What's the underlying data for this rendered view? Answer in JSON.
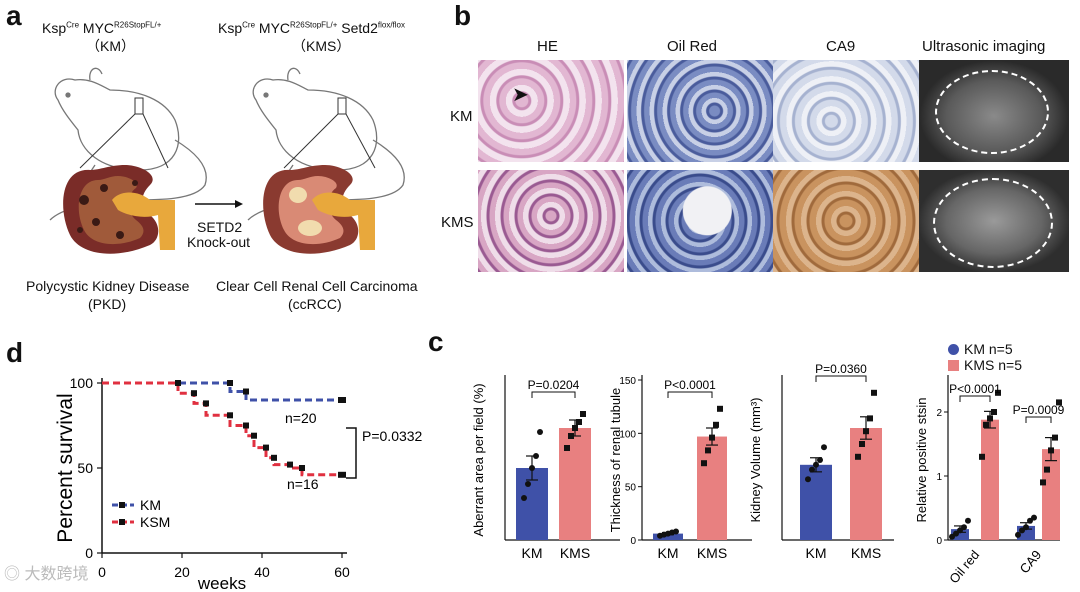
{
  "panel_a": {
    "letter": "a",
    "km_genotype": {
      "base": "Ksp",
      "cre": "Cre",
      "myc": " MYC",
      "r26": "R26StopFL/+"
    },
    "kms_genotype": {
      "base": "Ksp",
      "cre": "Cre",
      "myc": " MYC",
      "r26": "R26StopFL/+",
      "setd2": " Setd2",
      "flox": "flox/flox"
    },
    "km_abbrev": "（KM）",
    "kms_abbrev": "（KMS）",
    "arrow_line1": "SETD2",
    "arrow_line2": "Knock-out",
    "left_disease": "Polycystic Kidney Disease",
    "left_abbrev": "(PKD)",
    "right_disease": "Clear Cell Renal Cell Carcinoma",
    "right_abbrev": "(ccRCC)"
  },
  "panel_b": {
    "letter": "b",
    "columns": [
      "HE",
      "Oil Red",
      "CA9",
      "Ultrasonic imaging"
    ],
    "rows": [
      "KM",
      "KMS"
    ],
    "colors": {
      "he": "#d9a7c9",
      "oil": "#6b7fb8",
      "ca9_km": "#c4cde0",
      "ca9_kms": "#c08a5c",
      "us": "#4a4a4a"
    }
  },
  "panel_d": {
    "letter": "d",
    "ylabel": "Percent survival",
    "xlabel": "weeks",
    "km_n": "n=20",
    "ksm_n": "n=16",
    "pvalue": "P=0.0332",
    "legend": [
      "KM",
      "KSM"
    ]
  },
  "panel_c": {
    "letter": "c",
    "legend": [
      "KM n=5",
      "KMS n=5"
    ],
    "colors": {
      "km": "#3f51a8",
      "kms": "#e88080"
    }
  },
  "chart_data": [
    {
      "type": "line",
      "title": "",
      "xlabel": "weeks",
      "ylabel": "Percent survival",
      "xlim": [
        0,
        60
      ],
      "ylim": [
        0,
        100
      ],
      "xticks": [
        0,
        20,
        40,
        60
      ],
      "yticks": [
        0,
        50,
        100
      ],
      "series": [
        {
          "name": "KM",
          "color": "#3f51a8",
          "x": [
            0,
            32,
            32,
            36,
            36,
            60
          ],
          "y": [
            100,
            100,
            95,
            95,
            90,
            90
          ]
        },
        {
          "name": "KSM",
          "color": "#e03040",
          "x": [
            0,
            19,
            19,
            23,
            23,
            26,
            26,
            32,
            32,
            36,
            36,
            38,
            38,
            41,
            41,
            43,
            43,
            47,
            47,
            50,
            50,
            60
          ],
          "y": [
            100,
            100,
            94,
            94,
            88,
            88,
            81,
            81,
            75,
            75,
            69,
            69,
            62,
            62,
            56,
            56,
            52,
            52,
            50,
            50,
            46,
            46
          ]
        }
      ]
    },
    {
      "type": "bar",
      "ylabel": "Aberrant area per field (%)",
      "categories": [
        "KM",
        "KMS"
      ],
      "values": [
        36,
        56
      ],
      "errors": [
        6,
        4
      ],
      "points": [
        [
          21,
          28,
          36,
          42,
          54
        ],
        [
          46,
          52,
          56,
          59,
          63
        ]
      ],
      "ylim": [
        0,
        80
      ],
      "pvalue": "P=0.0204"
    },
    {
      "type": "bar",
      "ylabel": "Thickness of renal tubule",
      "categories": [
        "KM",
        "KMS"
      ],
      "values": [
        6,
        97
      ],
      "errors": [
        1,
        8
      ],
      "points": [
        [
          4,
          5,
          6,
          7,
          8
        ],
        [
          72,
          84,
          96,
          108,
          123
        ]
      ],
      "ylim": [
        0,
        150
      ],
      "yticks": [
        0,
        50,
        100,
        150
      ],
      "pvalue": "P<0.0001"
    },
    {
      "type": "bar",
      "ylabel": "Kidney Volume (mm³)",
      "categories": [
        "KM",
        "KMS"
      ],
      "values": [
        235,
        350
      ],
      "errors": [
        22,
        35
      ],
      "points": [
        [
          190,
          220,
          235,
          250,
          290
        ],
        [
          260,
          300,
          340,
          380,
          460
        ]
      ],
      "ylim": [
        0,
        500
      ],
      "pvalue": "P=0.0360"
    },
    {
      "type": "bar",
      "ylabel": "Relative positive stsin",
      "categories": [
        "Oil red",
        "CA9"
      ],
      "series": [
        {
          "name": "KM n=5",
          "values": [
            0.17,
            0.22
          ],
          "errors": [
            0.05,
            0.05
          ],
          "points": [
            [
              0.05,
              0.1,
              0.15,
              0.2,
              0.3
            ],
            [
              0.08,
              0.15,
              0.2,
              0.3,
              0.35
            ]
          ]
        },
        {
          "name": "KMS n=5",
          "values": [
            1.88,
            1.42
          ],
          "errors": [
            0.13,
            0.18
          ],
          "points": [
            [
              1.3,
              1.8,
              1.9,
              2.0,
              2.3
            ],
            [
              0.9,
              1.1,
              1.4,
              1.6,
              2.15
            ]
          ]
        }
      ],
      "ylim": [
        0,
        2.5
      ],
      "yticks": [
        0,
        1,
        2
      ],
      "pvalues": [
        "P<0.0001",
        "P=0.0009"
      ]
    }
  ]
}
